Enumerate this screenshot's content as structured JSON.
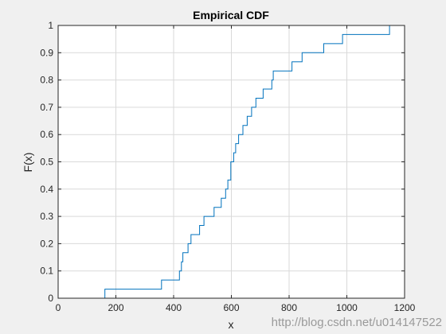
{
  "colors": {
    "figure_background": "#f0f0f0",
    "axes_background": "#ffffff",
    "axis_color": "#262626",
    "grid_color": "#d9d9d9",
    "line_color": "#0072bd",
    "watermark_color": "#9a9a9a"
  },
  "watermark": "http://blog.csdn.net/u014147522",
  "chart_data": {
    "type": "line",
    "step": true,
    "title": "Empirical CDF",
    "xlabel": "x",
    "ylabel": "F(x)",
    "xlim": [
      0,
      1200
    ],
    "ylim": [
      0,
      1
    ],
    "xticks": [
      0,
      200,
      400,
      600,
      800,
      1000,
      1200
    ],
    "xtick_labels": [
      "0",
      "200",
      "400",
      "600",
      "800",
      "1000",
      "1200"
    ],
    "yticks": [
      0,
      0.1,
      0.2,
      0.3,
      0.4,
      0.5,
      0.6,
      0.7,
      0.8,
      0.9,
      1
    ],
    "ytick_labels": [
      "0",
      "0.1",
      "0.2",
      "0.3",
      "0.4",
      "0.5",
      "0.6",
      "0.7",
      "0.8",
      "0.9",
      "1"
    ],
    "grid": true,
    "series": [
      {
        "x": [
          162,
          162,
          358,
          358,
          420,
          420,
          427,
          427,
          432,
          432,
          450,
          450,
          460,
          460,
          490,
          490,
          505,
          505,
          540,
          540,
          565,
          565,
          580,
          580,
          588,
          588,
          598,
          598,
          608,
          608,
          615,
          615,
          625,
          625,
          640,
          640,
          655,
          655,
          670,
          670,
          685,
          685,
          700,
          700,
          710,
          710,
          730,
          730,
          740,
          740,
          745,
          745,
          755,
          755,
          810,
          810,
          845,
          845,
          920,
          920,
          985,
          985,
          1148,
          1148,
          1155
        ],
        "y": [
          0,
          0.0333,
          0.0333,
          0.0667,
          0.0667,
          0.1,
          0.1,
          0.1333,
          0.1333,
          0.1667,
          0.1667,
          0.2,
          0.2,
          0.2333,
          0.2333,
          0.2667,
          0.2667,
          0.3,
          0.3,
          0.3333,
          0.3333,
          0.3667,
          0.3667,
          0.4,
          0.4,
          0.4333,
          0.4333,
          0.5,
          0.5,
          0.5333,
          0.5333,
          0.5667,
          0.5667,
          0.6,
          0.6,
          0.6333,
          0.6333,
          0.6667,
          0.6667,
          0.7,
          0.7,
          0.7333,
          0.7333,
          0.7333,
          0.7333,
          0.7667,
          0.7667,
          0.7667,
          0.7667,
          0.8,
          0.8,
          0.8333,
          0.8333,
          0.8333,
          0.8333,
          0.8667,
          0.8667,
          0.9,
          0.9,
          0.9333,
          0.9333,
          0.9667,
          0.9667,
          1.0,
          1.0
        ]
      }
    ]
  }
}
